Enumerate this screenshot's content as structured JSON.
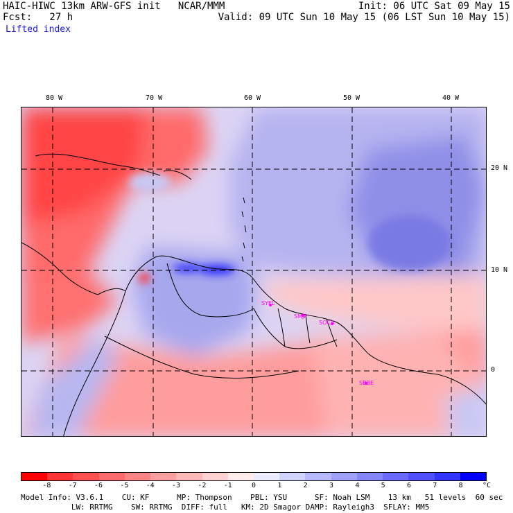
{
  "header": {
    "model_line": "HAIC-HIWC 13km ARW-GFS init   NCAR/MMM",
    "fcst_line": "Fcst:   27 h",
    "field_name": "Lifted index",
    "init_line": "Init: 06 UTC Sat 09 May 15",
    "valid_line": "Valid: 09 UTC Sun 10 May 15 (06 LST Sun 10 May 15)"
  },
  "map": {
    "lon_labels": [
      "80 W",
      "70 W",
      "60 W",
      "50 W",
      "40 W"
    ],
    "lat_labels": [
      "20 N",
      "10 N",
      "0"
    ],
    "stations": [
      "SYEL",
      "SMJP",
      "SOCA",
      "SBBE"
    ]
  },
  "colorbar": {
    "labels": [
      "-8",
      "-7",
      "-6",
      "-5",
      "-4",
      "-3",
      "-2",
      "-1",
      "0",
      "1",
      "2",
      "3",
      "4",
      "5",
      "6",
      "7",
      "8"
    ],
    "unit": "°C",
    "colors": [
      "#ff0000",
      "#ff3434",
      "#ff5050",
      "#ff6a6a",
      "#ff8585",
      "#ffa0a0",
      "#ffb9b9",
      "#ffd3d3",
      "#ffecec",
      "#ececff",
      "#d3d3ff",
      "#b9b9ff",
      "#a0a0ff",
      "#8585ff",
      "#6a6aff",
      "#5050ff",
      "#3434ff",
      "#0000ff"
    ]
  },
  "footer": {
    "line1": "Model Info: V3.6.1    CU: KF      MP: Thompson    PBL: YSU      SF: Noah LSM    13 km   51 levels  60 sec",
    "line2": "           LW: RRTMG    SW: RRTMG  DIFF: full   KM: 2D Smagor DAMP: Rayleigh3  SFLAY: MM5"
  }
}
